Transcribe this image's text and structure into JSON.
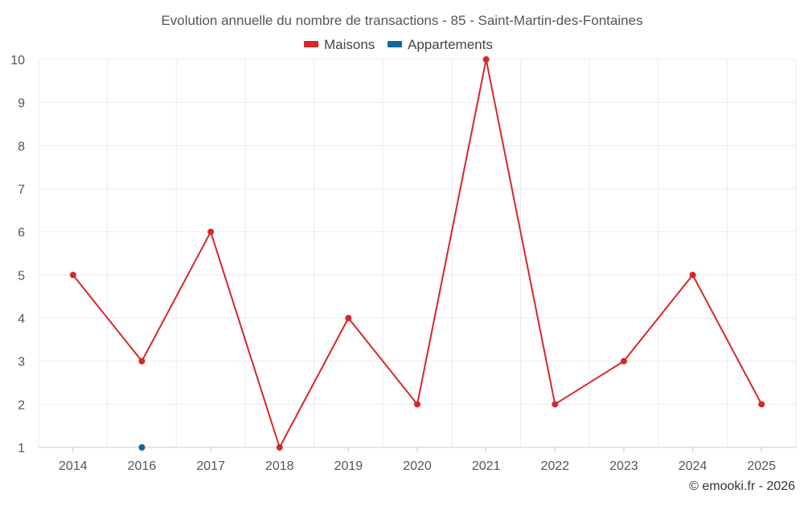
{
  "chart_data": {
    "type": "line",
    "title": "Evolution annuelle du nombre de transactions - 85 - Saint-Martin-des-Fontaines",
    "categories": [
      "2014",
      "2016",
      "2017",
      "2018",
      "2019",
      "2020",
      "2021",
      "2022",
      "2023",
      "2024",
      "2025"
    ],
    "series": [
      {
        "name": "Maisons",
        "color": "#d62728",
        "values": [
          5,
          3,
          6,
          1,
          4,
          2,
          10,
          2,
          3,
          5,
          2
        ]
      },
      {
        "name": "Appartements",
        "color": "#0a6aa1",
        "values": [
          null,
          1,
          null,
          null,
          null,
          null,
          null,
          null,
          null,
          null,
          null
        ]
      }
    ],
    "ylim": [
      1,
      10
    ],
    "yticks": [
      "1",
      "2",
      "3",
      "4",
      "5",
      "6",
      "7",
      "8",
      "9",
      "10"
    ],
    "xlabel": "",
    "ylabel": "",
    "grid": true,
    "legend_position": "top-center"
  },
  "credit": "© emooki.fr - 2026"
}
